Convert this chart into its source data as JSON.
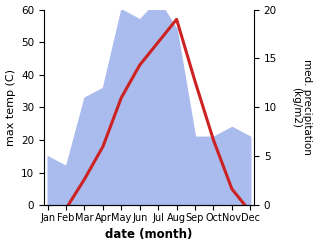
{
  "months": [
    "Jan",
    "Feb",
    "Mar",
    "Apr",
    "May",
    "Jun",
    "Jul",
    "Aug",
    "Sep",
    "Oct",
    "Nov",
    "Dec"
  ],
  "x": [
    1,
    2,
    3,
    4,
    5,
    6,
    7,
    8,
    9,
    10,
    11,
    12
  ],
  "temp": [
    -2,
    -1,
    8,
    18,
    33,
    43,
    50,
    57,
    38,
    20,
    5,
    -2
  ],
  "precip": [
    5,
    4,
    11,
    12,
    20,
    19,
    21,
    18,
    7,
    7,
    8,
    7
  ],
  "temp_ylim": [
    0,
    60
  ],
  "precip_ylim": [
    0,
    20
  ],
  "temp_color": "#cc2222",
  "precip_color": "#aabbee",
  "left_ylabel": "max temp (C)",
  "right_ylabel": "med. precipitation\n(kg/m2)",
  "xlabel": "date (month)",
  "temp_linewidth": 2.2,
  "background_color": "#ffffff"
}
